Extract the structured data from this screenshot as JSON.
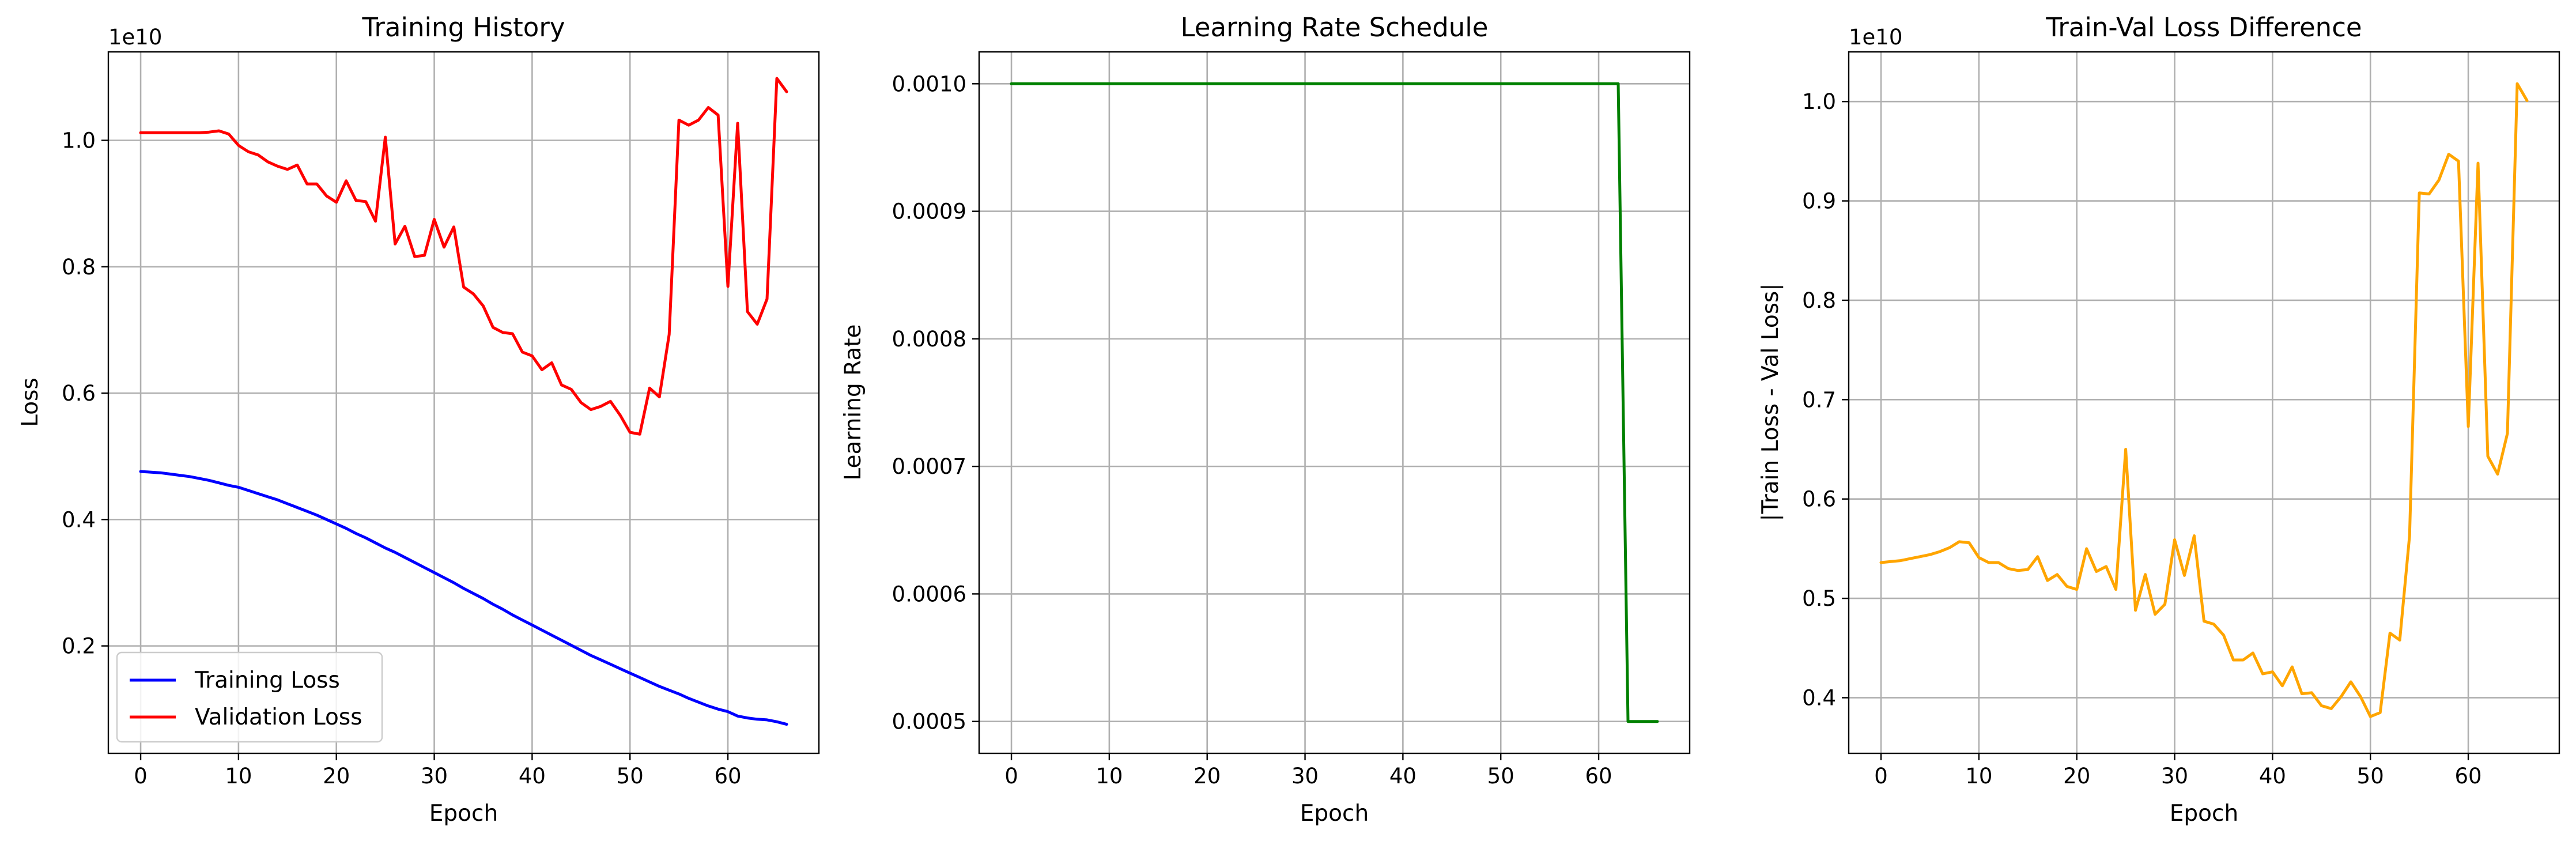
{
  "chart_data": [
    {
      "type": "line",
      "title": "Training History",
      "xlabel": "Epoch",
      "ylabel": "Loss",
      "offset_text": "1e10",
      "xlim": [
        -3.3,
        69.3
      ],
      "ylim": [
        0.03,
        1.14
      ],
      "xticks": [
        0,
        10,
        20,
        30,
        40,
        50,
        60
      ],
      "xtick_labels": [
        "0",
        "10",
        "20",
        "30",
        "40",
        "50",
        "60"
      ],
      "yticks": [
        0.2,
        0.4,
        0.6,
        0.8,
        1.0
      ],
      "ytick_labels": [
        "0.2",
        "0.4",
        "0.6",
        "0.8",
        "1.0"
      ],
      "grid": true,
      "legend_position": "lower-left",
      "series": [
        {
          "name": "Training Loss",
          "color": "#0000ff",
          "x": [
            0,
            1,
            2,
            3,
            4,
            5,
            6,
            7,
            8,
            9,
            10,
            11,
            12,
            13,
            14,
            15,
            16,
            17,
            18,
            19,
            20,
            21,
            22,
            23,
            24,
            25,
            26,
            27,
            28,
            29,
            30,
            31,
            32,
            33,
            34,
            35,
            36,
            37,
            38,
            39,
            40,
            41,
            42,
            43,
            44,
            45,
            46,
            47,
            48,
            49,
            50,
            51,
            52,
            53,
            54,
            55,
            56,
            57,
            58,
            59,
            60,
            61,
            62,
            63,
            64,
            65,
            66
          ],
          "values": [
            0.476,
            0.475,
            0.474,
            0.472,
            0.47,
            0.468,
            0.465,
            0.462,
            0.458,
            0.454,
            0.451,
            0.446,
            0.441,
            0.436,
            0.431,
            0.425,
            0.419,
            0.413,
            0.407,
            0.4,
            0.393,
            0.386,
            0.378,
            0.371,
            0.363,
            0.355,
            0.348,
            0.34,
            0.332,
            0.324,
            0.316,
            0.308,
            0.3,
            0.291,
            0.283,
            0.275,
            0.266,
            0.258,
            0.249,
            0.241,
            0.233,
            0.225,
            0.217,
            0.209,
            0.201,
            0.193,
            0.185,
            0.178,
            0.171,
            0.164,
            0.157,
            0.15,
            0.143,
            0.136,
            0.13,
            0.124,
            0.117,
            0.111,
            0.105,
            0.1,
            0.096,
            0.089,
            0.086,
            0.084,
            0.083,
            0.08,
            0.076
          ]
        },
        {
          "name": "Validation Loss",
          "color": "#ff0000",
          "x": [
            0,
            1,
            2,
            3,
            4,
            5,
            6,
            7,
            8,
            9,
            10,
            11,
            12,
            13,
            14,
            15,
            16,
            17,
            18,
            19,
            20,
            21,
            22,
            23,
            24,
            25,
            26,
            27,
            28,
            29,
            30,
            31,
            32,
            33,
            34,
            35,
            36,
            37,
            38,
            39,
            40,
            41,
            42,
            43,
            44,
            45,
            46,
            47,
            48,
            49,
            50,
            51,
            52,
            53,
            54,
            55,
            56,
            57,
            58,
            59,
            60,
            61,
            62,
            63,
            64,
            65,
            66
          ],
          "values": [
            1.012,
            1.012,
            1.012,
            1.012,
            1.012,
            1.012,
            1.012,
            1.013,
            1.015,
            1.01,
            0.992,
            0.982,
            0.977,
            0.966,
            0.959,
            0.954,
            0.961,
            0.931,
            0.931,
            0.912,
            0.902,
            0.936,
            0.905,
            0.903,
            0.872,
            1.005,
            0.836,
            0.864,
            0.816,
            0.818,
            0.875,
            0.831,
            0.863,
            0.768,
            0.757,
            0.738,
            0.704,
            0.696,
            0.694,
            0.665,
            0.659,
            0.637,
            0.648,
            0.613,
            0.606,
            0.585,
            0.574,
            0.579,
            0.587,
            0.565,
            0.538,
            0.535,
            0.608,
            0.594,
            0.693,
            1.032,
            1.024,
            1.032,
            1.052,
            1.04,
            0.769,
            1.027,
            0.729,
            0.709,
            0.749,
            1.098,
            1.077
          ]
        }
      ]
    },
    {
      "type": "line",
      "title": "Learning Rate Schedule",
      "xlabel": "Epoch",
      "ylabel": "Learning Rate",
      "xlim": [
        -3.3,
        69.3
      ],
      "ylim": [
        0.000475,
        0.001025
      ],
      "xticks": [
        0,
        10,
        20,
        30,
        40,
        50,
        60
      ],
      "xtick_labels": [
        "0",
        "10",
        "20",
        "30",
        "40",
        "50",
        "60"
      ],
      "yticks": [
        0.0005,
        0.0006,
        0.0007,
        0.0008,
        0.0009,
        0.001
      ],
      "ytick_labels": [
        "0.0005",
        "0.0006",
        "0.0007",
        "0.0008",
        "0.0009",
        "0.0010"
      ],
      "grid": true,
      "series": [
        {
          "name": "Learning Rate",
          "color": "#008000",
          "x": [
            0,
            62,
            63,
            66
          ],
          "values": [
            0.001,
            0.001,
            0.0005,
            0.0005
          ]
        }
      ]
    },
    {
      "type": "line",
      "title": "Train-Val Loss Difference",
      "xlabel": "Epoch",
      "ylabel": "|Train Loss - Val Loss|",
      "offset_text": "1e10",
      "xlim": [
        -3.3,
        69.3
      ],
      "ylim": [
        0.344,
        1.05
      ],
      "xticks": [
        0,
        10,
        20,
        30,
        40,
        50,
        60
      ],
      "xtick_labels": [
        "0",
        "10",
        "20",
        "30",
        "40",
        "50",
        "60"
      ],
      "yticks": [
        0.4,
        0.5,
        0.6,
        0.7,
        0.8,
        0.9,
        1.0
      ],
      "ytick_labels": [
        "0.4",
        "0.5",
        "0.6",
        "0.7",
        "0.8",
        "0.9",
        "1.0"
      ],
      "grid": true,
      "series": [
        {
          "name": "|Train Loss - Val Loss|",
          "color": "#ffa500",
          "x": [
            0,
            1,
            2,
            3,
            4,
            5,
            6,
            7,
            8,
            9,
            10,
            11,
            12,
            13,
            14,
            15,
            16,
            17,
            18,
            19,
            20,
            21,
            22,
            23,
            24,
            25,
            26,
            27,
            28,
            29,
            30,
            31,
            32,
            33,
            34,
            35,
            36,
            37,
            38,
            39,
            40,
            41,
            42,
            43,
            44,
            45,
            46,
            47,
            48,
            49,
            50,
            51,
            52,
            53,
            54,
            55,
            56,
            57,
            58,
            59,
            60,
            61,
            62,
            63,
            64,
            65,
            66
          ],
          "values": [
            0.536,
            0.537,
            0.538,
            0.54,
            0.542,
            0.544,
            0.547,
            0.551,
            0.557,
            0.556,
            0.541,
            0.536,
            0.536,
            0.53,
            0.528,
            0.529,
            0.542,
            0.518,
            0.524,
            0.512,
            0.509,
            0.55,
            0.527,
            0.532,
            0.509,
            0.65,
            0.488,
            0.524,
            0.484,
            0.494,
            0.559,
            0.523,
            0.563,
            0.477,
            0.474,
            0.463,
            0.438,
            0.438,
            0.445,
            0.424,
            0.426,
            0.412,
            0.431,
            0.404,
            0.405,
            0.392,
            0.389,
            0.401,
            0.416,
            0.401,
            0.381,
            0.385,
            0.465,
            0.458,
            0.563,
            0.908,
            0.907,
            0.921,
            0.947,
            0.94,
            0.673,
            0.938,
            0.643,
            0.625,
            0.666,
            1.018,
            1.001
          ]
        }
      ]
    }
  ],
  "legend": {
    "entries": [
      "Training Loss",
      "Validation Loss"
    ]
  }
}
